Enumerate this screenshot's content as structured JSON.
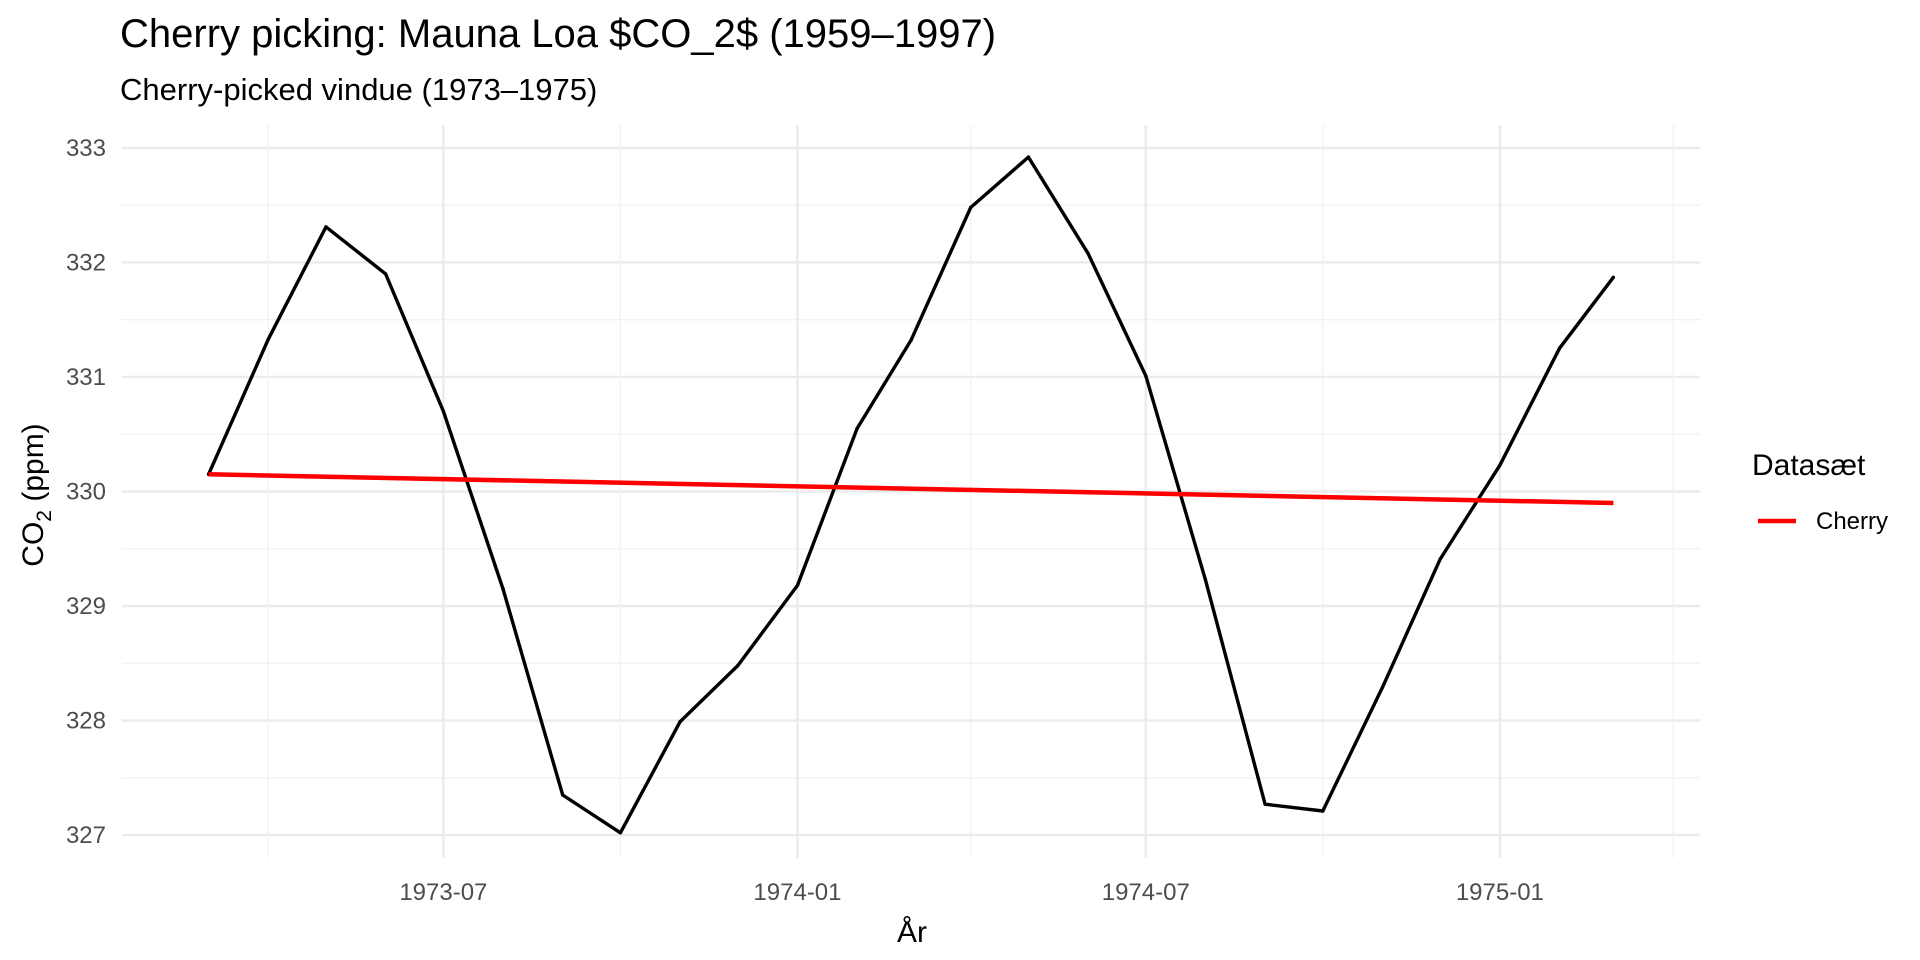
{
  "chart_data": {
    "type": "line",
    "title": "Cherry picking: Mauna Loa $CO_2$ (1959–1997)",
    "subtitle": "Cherry-picked vindue (1973–1975)",
    "xlabel": "År",
    "ylabel_main": "CO",
    "ylabel_sub": "2",
    "ylabel_rest": " (ppm)",
    "x_tick_labels": [
      "1973-07",
      "1974-01",
      "1974-07",
      "1975-01"
    ],
    "y_tick_labels": [
      "327",
      "328",
      "329",
      "330",
      "331",
      "332",
      "333"
    ],
    "ylim": [
      326.8,
      333.2
    ],
    "xlim": [
      "1973-01-15",
      "1975-04-15"
    ],
    "grid": true,
    "series": [
      {
        "role": "data",
        "color": "#000000",
        "x": [
          "1973-03",
          "1973-04",
          "1973-05",
          "1973-06",
          "1973-07",
          "1973-08",
          "1973-09",
          "1973-10",
          "1973-11",
          "1973-12",
          "1974-01",
          "1974-02",
          "1974-03",
          "1974-04",
          "1974-05",
          "1974-06",
          "1974-07",
          "1974-08",
          "1974-09",
          "1974-10",
          "1974-11",
          "1974-12",
          "1975-01",
          "1975-02",
          "1975-03"
        ],
        "values": [
          330.15,
          331.33,
          332.31,
          331.9,
          330.7,
          329.15,
          327.35,
          327.02,
          327.99,
          328.48,
          329.18,
          330.55,
          331.32,
          332.48,
          332.92,
          332.08,
          331.01,
          329.23,
          327.27,
          327.21,
          328.29,
          329.41,
          330.23,
          331.25,
          331.87
        ]
      },
      {
        "name": "Cherry",
        "role": "trend",
        "color": "#ff0000",
        "x": [
          "1973-03",
          "1975-03"
        ],
        "values": [
          330.15,
          329.9
        ]
      }
    ],
    "legend": {
      "title": "Datasæt",
      "position": "right",
      "entries": [
        "Cherry"
      ]
    }
  }
}
